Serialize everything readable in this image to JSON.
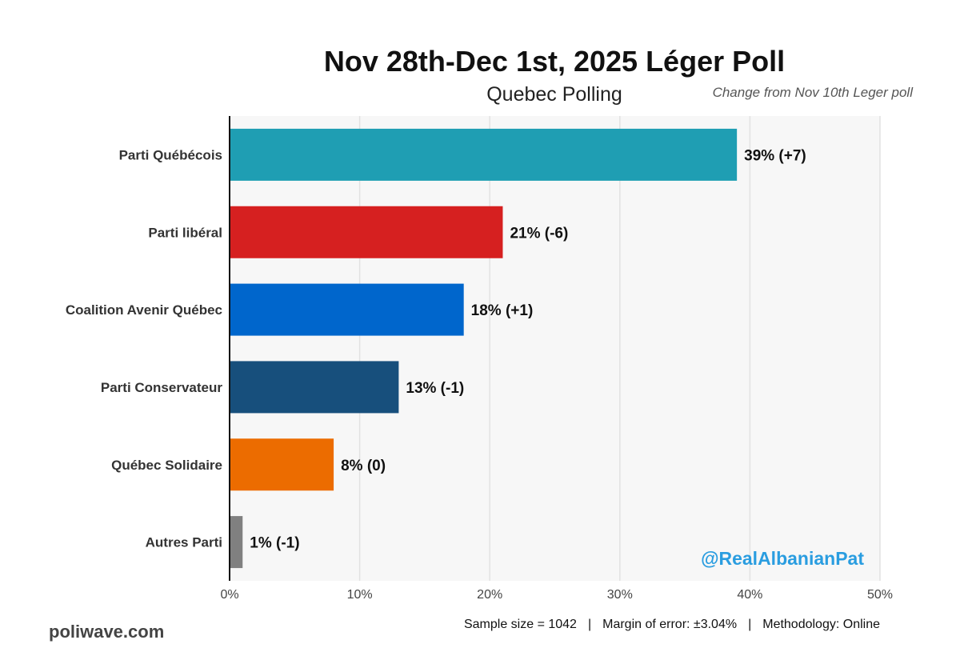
{
  "title": "Nov 28th-Dec 1st, 2025 Léger Poll",
  "subtitle": "Quebec Polling",
  "change_note": "Change from Nov 10th Leger poll",
  "watermark": "@RealAlbanianPat",
  "source": "poliwave.com",
  "footer": {
    "sample": "Sample size = 1042",
    "separator": "|",
    "margin": "Margin of error: ±3.04%",
    "methodology": "Methodology: Online"
  },
  "chart_data": {
    "type": "bar",
    "orientation": "horizontal",
    "categories": [
      "Parti Québécois",
      "Parti libéral",
      "Coalition Avenir Québec",
      "Parti Conservateur",
      "Québec Solidaire",
      "Autres Parti"
    ],
    "values": [
      39,
      21,
      18,
      13,
      8,
      1
    ],
    "changes": [
      "+7",
      "-6",
      "+1",
      "-1",
      "0",
      "-1"
    ],
    "data_labels": [
      "39% (+7)",
      "21% (-6)",
      "18% (+1)",
      "13% (-1)",
      "8% (0)",
      "1% (-1)"
    ],
    "colors": [
      "#1f9eb3",
      "#d62020",
      "#0066cc",
      "#174f7c",
      "#ec6c00",
      "#808080"
    ],
    "xlim": [
      0,
      50
    ],
    "xticks": [
      0,
      10,
      20,
      30,
      40,
      50
    ],
    "xtick_labels": [
      "0%",
      "10%",
      "20%",
      "30%",
      "40%",
      "50%"
    ],
    "xlabel": "",
    "ylabel": "",
    "grid": true,
    "background": "#f7f7f7"
  }
}
